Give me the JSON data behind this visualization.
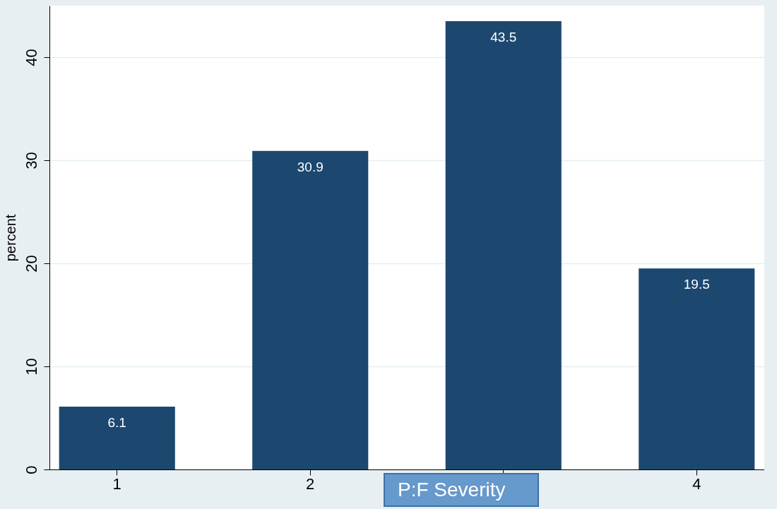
{
  "chart_data": {
    "type": "bar",
    "xlabel": "P:F Severity",
    "ylabel": "percent",
    "categories": [
      "1",
      "2",
      null,
      "4"
    ],
    "values": [
      6.1,
      30.9,
      43.5,
      19.5
    ],
    "color": "#1c4870",
    "ylim": [
      0,
      45
    ],
    "yticks": [
      0,
      10,
      20,
      30,
      40
    ],
    "grid": "y",
    "data_labels": true
  }
}
